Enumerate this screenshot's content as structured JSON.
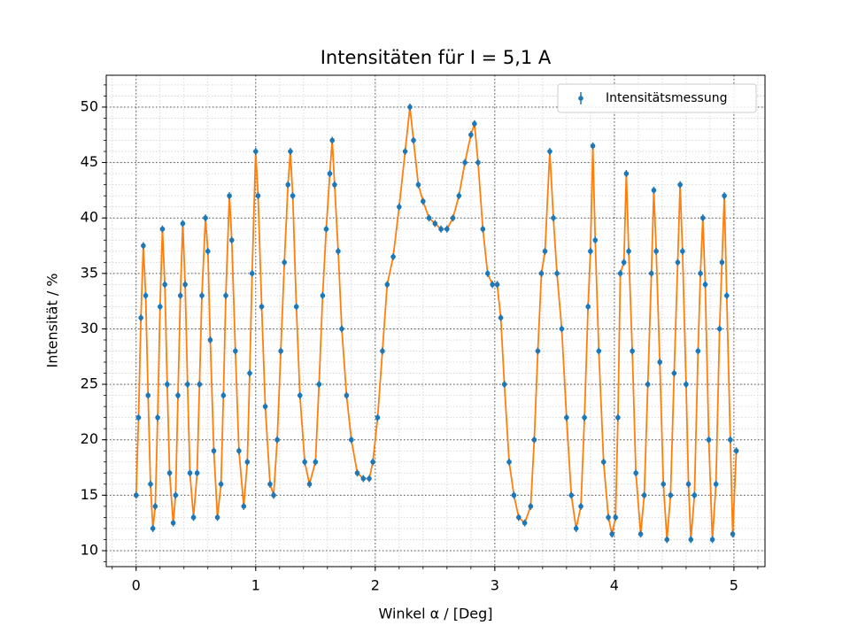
{
  "chart_data": {
    "type": "line_scatter",
    "title": "Intensitäten für I = 5,1 A",
    "x_label": "Winkel α / [Deg]",
    "y_label": "Intensität / %",
    "x": [
      0.0,
      0.02,
      0.04,
      0.06,
      0.08,
      0.1,
      0.12,
      0.14,
      0.16,
      0.18,
      0.2,
      0.22,
      0.24,
      0.26,
      0.28,
      0.31,
      0.33,
      0.35,
      0.37,
      0.39,
      0.41,
      0.43,
      0.45,
      0.48,
      0.51,
      0.53,
      0.55,
      0.58,
      0.6,
      0.62,
      0.65,
      0.68,
      0.71,
      0.73,
      0.75,
      0.78,
      0.8,
      0.83,
      0.86,
      0.9,
      0.93,
      0.95,
      0.97,
      1.0,
      1.02,
      1.05,
      1.08,
      1.12,
      1.15,
      1.18,
      1.21,
      1.24,
      1.27,
      1.29,
      1.31,
      1.34,
      1.37,
      1.41,
      1.45,
      1.5,
      1.53,
      1.56,
      1.59,
      1.62,
      1.64,
      1.66,
      1.69,
      1.72,
      1.76,
      1.8,
      1.85,
      1.9,
      1.95,
      1.98,
      2.02,
      2.06,
      2.1,
      2.15,
      2.2,
      2.25,
      2.29,
      2.32,
      2.36,
      2.4,
      2.45,
      2.5,
      2.55,
      2.6,
      2.65,
      2.7,
      2.75,
      2.8,
      2.83,
      2.86,
      2.9,
      2.94,
      2.98,
      3.02,
      3.05,
      3.08,
      3.12,
      3.16,
      3.2,
      3.25,
      3.3,
      3.33,
      3.36,
      3.39,
      3.42,
      3.46,
      3.49,
      3.52,
      3.56,
      3.6,
      3.64,
      3.68,
      3.72,
      3.75,
      3.78,
      3.8,
      3.82,
      3.84,
      3.87,
      3.91,
      3.95,
      3.98,
      4.01,
      4.03,
      4.05,
      4.08,
      4.1,
      4.12,
      4.15,
      4.18,
      4.22,
      4.25,
      4.28,
      4.31,
      4.33,
      4.35,
      4.38,
      4.41,
      4.44,
      4.47,
      4.5,
      4.53,
      4.55,
      4.57,
      4.6,
      4.62,
      4.64,
      4.67,
      4.7,
      4.72,
      4.74,
      4.76,
      4.79,
      4.82,
      4.85,
      4.88,
      4.9,
      4.92,
      4.94,
      4.97,
      4.99,
      5.02
    ],
    "series": [
      {
        "name": "Intensitätsmessung",
        "color": "#1f77b4",
        "line_color": "#ff7f0e",
        "values": [
          15,
          22,
          31,
          37.5,
          33,
          24,
          16,
          12,
          14,
          22,
          32,
          39,
          34,
          25,
          17,
          12.5,
          15,
          24,
          33,
          39.5,
          34,
          25,
          17,
          13,
          17,
          25,
          33,
          40,
          37,
          29,
          19,
          13,
          16,
          24,
          33,
          42,
          38,
          28,
          19,
          14,
          18,
          26,
          35,
          46,
          42,
          32,
          23,
          16,
          15,
          20,
          28,
          36,
          43,
          46,
          42,
          32,
          24,
          18,
          16,
          18,
          25,
          33,
          39,
          44,
          47,
          43,
          37,
          30,
          24,
          20,
          17,
          16.5,
          16.5,
          18,
          22,
          28,
          34,
          36.5,
          41,
          46,
          50,
          47,
          43,
          41.5,
          40,
          39.5,
          39,
          39,
          40,
          42,
          45,
          47.5,
          48.5,
          45,
          39,
          35,
          34,
          34,
          31,
          25,
          18,
          15,
          13,
          12.5,
          14,
          20,
          28,
          35,
          37,
          46,
          40,
          35,
          30,
          22,
          15,
          12,
          14,
          22,
          32,
          37,
          46.5,
          38,
          28,
          18,
          13,
          11.5,
          13,
          22,
          35,
          36,
          44,
          37,
          28,
          17,
          11.5,
          15,
          25,
          35,
          42.5,
          37,
          27,
          16,
          11,
          15,
          26,
          36,
          43,
          37,
          25,
          16,
          11,
          15,
          28,
          35,
          40,
          34,
          20,
          11,
          16,
          30,
          36,
          42,
          33,
          20,
          11.5,
          19
        ]
      }
    ],
    "xlim": [
      -0.25,
      5.26
    ],
    "ylim": [
      8.56,
      52.87
    ],
    "xticks": [
      0,
      1,
      2,
      3,
      4,
      5
    ],
    "yticks": [
      10,
      15,
      20,
      25,
      30,
      35,
      40,
      45,
      50
    ],
    "grid": true,
    "minor_grid": true,
    "legend": "upper right"
  }
}
